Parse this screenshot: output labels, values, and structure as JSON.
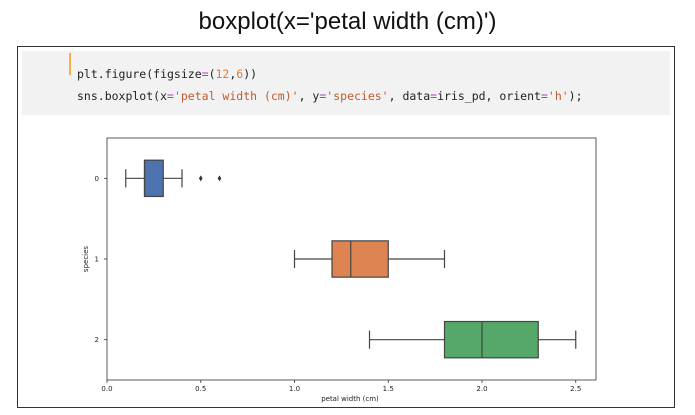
{
  "slide": {
    "title": "boxplot(x='petal width (cm)')"
  },
  "code": {
    "line1": {
      "p1": "plt.figure(figsize",
      "op": "=",
      "p2": "(",
      "n1": "12",
      "p3": ",",
      "n2": "6",
      "p4": "))"
    },
    "line2": {
      "p1": "sns.boxplot(x",
      "op1": "=",
      "s1": "'petal width (cm)'",
      "p2": ", y",
      "op2": "=",
      "s2": "'species'",
      "p3": ", data",
      "op3": "=",
      "p4": "iris_pd, orient",
      "op4": "=",
      "s3": "'h'",
      "p5": ");"
    }
  },
  "chart_data": {
    "type": "boxplot",
    "orientation": "horizontal",
    "xlabel": "petal width (cm)",
    "ylabel": "species",
    "xlim": [
      0.0,
      2.7
    ],
    "xticks": [
      0.0,
      0.5,
      1.0,
      1.5,
      2.0,
      2.5
    ],
    "xtick_labels": [
      "0.0",
      "0.5",
      "1.0",
      "1.5",
      "2.0",
      "2.5"
    ],
    "categories": [
      "0",
      "1",
      "2"
    ],
    "grid": false,
    "boxes": [
      {
        "category": "0",
        "whisker_low": 0.1,
        "q1": 0.2,
        "median": 0.2,
        "q3": 0.3,
        "whisker_high": 0.4,
        "outliers": [
          0.5,
          0.6
        ],
        "color": "#4c72b0"
      },
      {
        "category": "1",
        "whisker_low": 1.0,
        "q1": 1.2,
        "median": 1.3,
        "q3": 1.5,
        "whisker_high": 1.8,
        "outliers": [],
        "color": "#dd8452"
      },
      {
        "category": "2",
        "whisker_low": 1.4,
        "q1": 1.8,
        "median": 2.0,
        "q3": 2.3,
        "whisker_high": 2.5,
        "outliers": [],
        "color": "#55a868"
      }
    ]
  }
}
